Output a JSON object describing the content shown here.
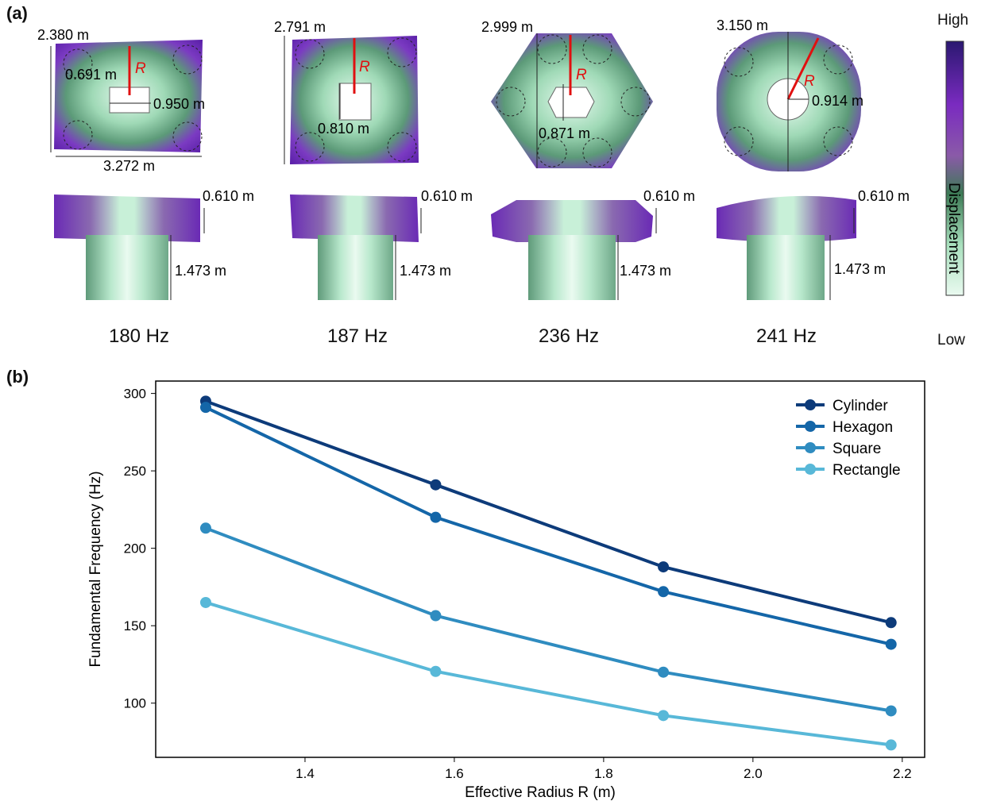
{
  "panel_a": {
    "label": "(a)",
    "colorbar": {
      "high": "High",
      "low": "Low",
      "title": "Displacement",
      "colors": [
        "#2a1870",
        "#7a2bc0",
        "#8a5aa8",
        "#3c7a55",
        "#a8e0bd",
        "#eafaf0"
      ]
    },
    "shapes": [
      {
        "name": "rectangle",
        "freq": "180 Hz",
        "dims": {
          "height": "2.380 m",
          "width": "3.272 m",
          "hole_h": "0.691 m",
          "hole_w": "0.950 m",
          "top_thickness": "0.610 m",
          "stem_height": "1.473 m"
        }
      },
      {
        "name": "square",
        "freq": "187 Hz",
        "dims": {
          "height": "2.791 m",
          "hole": "0.810 m",
          "top_thickness": "0.610 m",
          "stem_height": "1.473 m"
        }
      },
      {
        "name": "hexagon",
        "freq": "236 Hz",
        "dims": {
          "height": "2.999 m",
          "hole": "0.871 m",
          "top_thickness": "0.610 m",
          "stem_height": "1.473 m"
        }
      },
      {
        "name": "cylinder",
        "freq": "241 Hz",
        "dims": {
          "height": "3.150 m",
          "hole": "0.914 m",
          "top_thickness": "0.610 m",
          "stem_height": "1.473 m"
        }
      }
    ],
    "radius_symbol": "R"
  },
  "panel_b": {
    "label": "(b)"
  },
  "chart_data": {
    "type": "line",
    "xlabel": "Effective Radius R (m)",
    "ylabel": "Fundamental Frequency (Hz)",
    "xlim": [
      1.2,
      2.23
    ],
    "ylim": [
      65,
      308
    ],
    "xticks": [
      1.4,
      1.6,
      1.8,
      2.0,
      2.2
    ],
    "yticks": [
      100,
      150,
      200,
      250,
      300
    ],
    "grid": false,
    "legend_position": "top-right",
    "x": [
      1.267,
      1.575,
      1.88,
      2.185
    ],
    "series": [
      {
        "name": "Cylinder",
        "color": "#0d3b7a",
        "values": [
          295,
          241,
          188,
          152
        ]
      },
      {
        "name": "Hexagon",
        "color": "#1466a8",
        "values": [
          291,
          220,
          172,
          138
        ]
      },
      {
        "name": "Square",
        "color": "#2f8cc0",
        "values": [
          213,
          156.5,
          120,
          95
        ]
      },
      {
        "name": "Rectangle",
        "color": "#58b8d8",
        "values": [
          165,
          120.5,
          92,
          73
        ]
      }
    ]
  }
}
